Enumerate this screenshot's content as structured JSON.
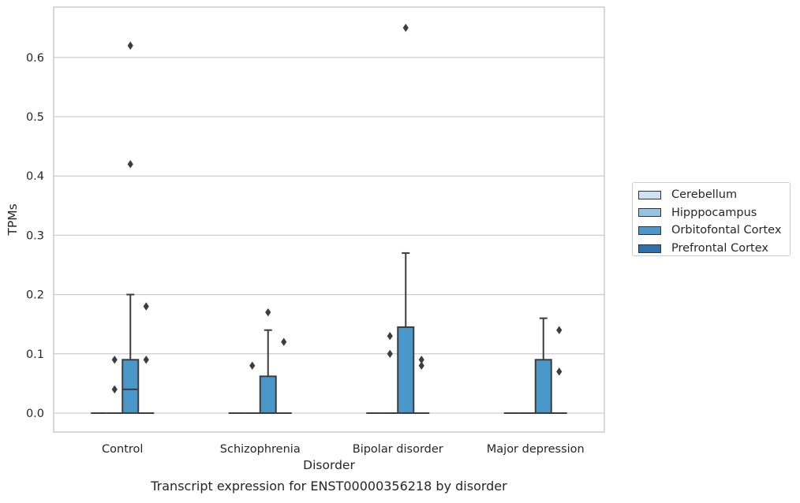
{
  "chart_data": {
    "type": "box",
    "title": "Transcript expression for ENST00000356218 by disorder",
    "xlabel": "Disorder",
    "ylabel": "TPMs",
    "ylim": [
      -0.032,
      0.685
    ],
    "yticks": [
      "0.0",
      "0.1",
      "0.2",
      "0.3",
      "0.4",
      "0.5",
      "0.6"
    ],
    "grid": "horizontal",
    "legend_position": "right, outside plot",
    "categories": [
      "Control",
      "Schizophrenia",
      "Bipolar disorder",
      "Major depression"
    ],
    "hue": [
      {
        "name": "Cerebellum",
        "color": "#d0e1f2"
      },
      {
        "name": "Hipppocampus",
        "color": "#94c4df"
      },
      {
        "name": "Orbitofontal Cortex",
        "color": "#4a98c9"
      },
      {
        "name": "Prefrontal Cortex",
        "color": "#2e6fac"
      }
    ],
    "boxes": [
      {
        "category": "Control",
        "hue": "Cerebellum",
        "q1": 0,
        "median": 0,
        "q3": 0,
        "whisker_low": 0,
        "whisker_high": 0,
        "outliers": []
      },
      {
        "category": "Control",
        "hue": "Hipppocampus",
        "q1": 0,
        "median": 0,
        "q3": 0,
        "whisker_low": 0,
        "whisker_high": 0,
        "outliers": [
          0.04,
          0.09
        ]
      },
      {
        "category": "Control",
        "hue": "Orbitofontal Cortex",
        "q1": 0,
        "median": 0.04,
        "q3": 0.09,
        "whisker_low": 0,
        "whisker_high": 0.2,
        "outliers": [
          0.42,
          0.62
        ]
      },
      {
        "category": "Control",
        "hue": "Prefrontal Cortex",
        "q1": 0,
        "median": 0,
        "q3": 0,
        "whisker_low": 0,
        "whisker_high": 0,
        "outliers": [
          0.09,
          0.18
        ]
      },
      {
        "category": "Schizophrenia",
        "hue": "Cerebellum",
        "q1": 0,
        "median": 0,
        "q3": 0,
        "whisker_low": 0,
        "whisker_high": 0,
        "outliers": []
      },
      {
        "category": "Schizophrenia",
        "hue": "Hipppocampus",
        "q1": 0,
        "median": 0,
        "q3": 0,
        "whisker_low": 0,
        "whisker_high": 0,
        "outliers": [
          0.08
        ]
      },
      {
        "category": "Schizophrenia",
        "hue": "Orbitofontal Cortex",
        "q1": 0,
        "median": 0,
        "q3": 0.062,
        "whisker_low": 0,
        "whisker_high": 0.14,
        "outliers": [
          0.17
        ]
      },
      {
        "category": "Schizophrenia",
        "hue": "Prefrontal Cortex",
        "q1": 0,
        "median": 0,
        "q3": 0,
        "whisker_low": 0,
        "whisker_high": 0,
        "outliers": [
          0.12
        ]
      },
      {
        "category": "Bipolar disorder",
        "hue": "Cerebellum",
        "q1": 0,
        "median": 0,
        "q3": 0,
        "whisker_low": 0,
        "whisker_high": 0,
        "outliers": []
      },
      {
        "category": "Bipolar disorder",
        "hue": "Hipppocampus",
        "q1": 0,
        "median": 0,
        "q3": 0,
        "whisker_low": 0,
        "whisker_high": 0,
        "outliers": [
          0.1,
          0.13
        ]
      },
      {
        "category": "Bipolar disorder",
        "hue": "Orbitofontal Cortex",
        "q1": 0,
        "median": 0,
        "q3": 0.145,
        "whisker_low": 0,
        "whisker_high": 0.27,
        "outliers": [
          0.65
        ]
      },
      {
        "category": "Bipolar disorder",
        "hue": "Prefrontal Cortex",
        "q1": 0,
        "median": 0,
        "q3": 0,
        "whisker_low": 0,
        "whisker_high": 0,
        "outliers": [
          0.08,
          0.09
        ]
      },
      {
        "category": "Major depression",
        "hue": "Cerebellum",
        "q1": 0,
        "median": 0,
        "q3": 0,
        "whisker_low": 0,
        "whisker_high": 0,
        "outliers": []
      },
      {
        "category": "Major depression",
        "hue": "Hipppocampus",
        "q1": 0,
        "median": 0,
        "q3": 0,
        "whisker_low": 0,
        "whisker_high": 0,
        "outliers": []
      },
      {
        "category": "Major depression",
        "hue": "Orbitofontal Cortex",
        "q1": 0,
        "median": 0,
        "q3": 0.09,
        "whisker_low": 0,
        "whisker_high": 0.16,
        "outliers": []
      },
      {
        "category": "Major depression",
        "hue": "Prefrontal Cortex",
        "q1": 0,
        "median": 0,
        "q3": 0,
        "whisker_low": 0,
        "whisker_high": 0,
        "outliers": [
          0.07,
          0.14
        ]
      }
    ]
  }
}
